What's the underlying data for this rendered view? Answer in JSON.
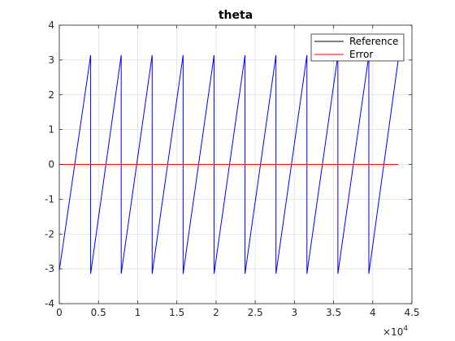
{
  "chart_data": {
    "type": "line",
    "title": "theta",
    "xlabel": "",
    "ylabel": "",
    "xlim": [
      0,
      45000
    ],
    "ylim": [
      -4,
      4
    ],
    "x_ticks": [
      0,
      5000,
      10000,
      15000,
      20000,
      25000,
      30000,
      35000,
      40000,
      45000
    ],
    "x_tick_labels": [
      "0",
      "0.5",
      "1",
      "1.5",
      "2",
      "2.5",
      "3",
      "3.5",
      "4",
      "4.5"
    ],
    "x_exponent_base": "×10",
    "x_exponent_power": "4",
    "y_ticks": [
      -4,
      -3,
      -2,
      -1,
      0,
      1,
      2,
      3,
      4
    ],
    "y_tick_labels": [
      "-4",
      "-3",
      "-2",
      "-1",
      "0",
      "1",
      "2",
      "3",
      "4"
    ],
    "grid": true,
    "legend_position": "top-right",
    "series": [
      {
        "name": "Reference",
        "color": "#0000ff",
        "x": [
          0,
          4000,
          4000,
          7900,
          7900,
          11850,
          11850,
          15800,
          15800,
          19750,
          19750,
          23700,
          23700,
          27650,
          27650,
          31600,
          31600,
          35550,
          35550,
          39500,
          39500,
          43250
        ],
        "y": [
          -3.05,
          3.14,
          -3.14,
          3.14,
          -3.14,
          3.14,
          -3.14,
          3.14,
          -3.14,
          3.14,
          -3.14,
          3.14,
          -3.14,
          3.14,
          -3.14,
          3.14,
          -3.14,
          3.14,
          -3.14,
          3.14,
          -3.14,
          3.0
        ]
      },
      {
        "name": "Error",
        "color": "#ff0000",
        "x": [
          0,
          43250
        ],
        "y": [
          0,
          0
        ]
      }
    ]
  }
}
